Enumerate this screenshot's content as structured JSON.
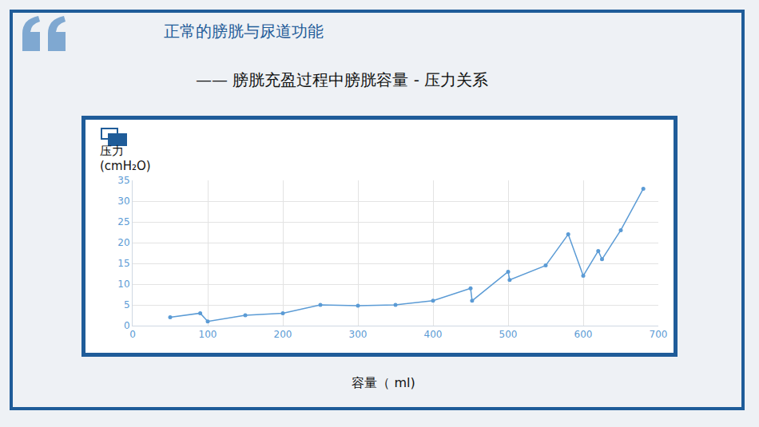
{
  "header": {
    "title": "正常的膀胱与尿道功能",
    "subtitle": "—— 膀胱充盈过程中膀胱容量 - 压力关系"
  },
  "chart_data": {
    "type": "line",
    "xlabel": "容量（ ml)",
    "ylabel": "压力 (cmH₂O)",
    "x": [
      50,
      90,
      100,
      150,
      200,
      250,
      300,
      350,
      400,
      450,
      452,
      500,
      502,
      550,
      580,
      600,
      620,
      625,
      650,
      680
    ],
    "values": [
      2,
      3,
      1,
      2.5,
      3,
      5,
      4.8,
      5,
      6,
      9,
      6,
      13,
      11,
      14.5,
      22,
      12,
      18,
      16,
      23,
      33
    ],
    "color": "#5b9bd5",
    "marker": "circle",
    "xlim": [
      0,
      700
    ],
    "xticks": [
      0,
      100,
      200,
      300,
      400,
      500,
      600,
      700
    ],
    "ylim": [
      0,
      35
    ],
    "yticks": [
      0,
      5,
      10,
      15,
      20,
      25,
      30,
      35
    ],
    "grid": true
  }
}
